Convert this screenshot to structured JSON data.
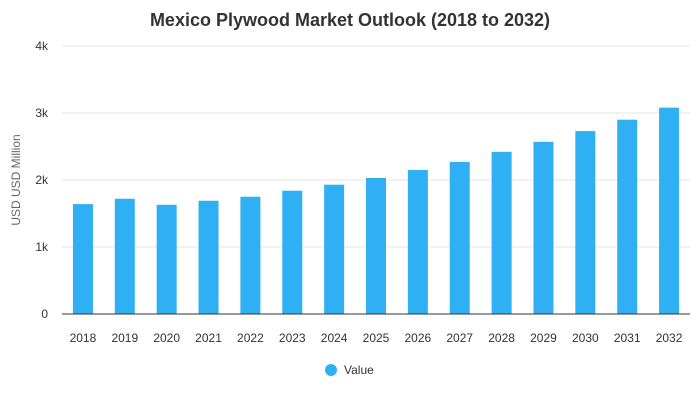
{
  "chart_data": {
    "type": "bar",
    "title": "Mexico Plywood Market Outlook (2018 to 2032)",
    "xlabel": "",
    "ylabel": "USD USD Million",
    "categories": [
      "2018",
      "2019",
      "2020",
      "2021",
      "2022",
      "2023",
      "2024",
      "2025",
      "2026",
      "2027",
      "2028",
      "2029",
      "2030",
      "2031",
      "2032"
    ],
    "series": [
      {
        "name": "Value",
        "values": [
          1640,
          1720,
          1630,
          1690,
          1750,
          1840,
          1930,
          2030,
          2150,
          2270,
          2420,
          2570,
          2730,
          2900,
          3080
        ]
      }
    ],
    "ylim": [
      0,
      4000
    ],
    "yticks": [
      0,
      1000,
      2000,
      3000,
      4000
    ],
    "ytick_labels": [
      "0",
      "1k",
      "2k",
      "3k",
      "4k"
    ],
    "grid": true,
    "legend_position": "bottom-center",
    "colors": {
      "bar": "#2fb0f5",
      "grid": "#e6e6e6",
      "axis": "#333333"
    }
  }
}
